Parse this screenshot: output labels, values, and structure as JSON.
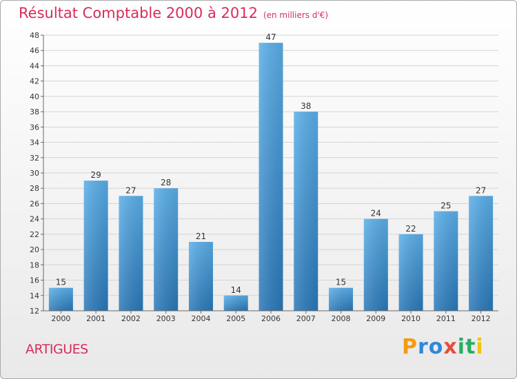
{
  "chart_data": {
    "type": "bar",
    "title": "Résultat Comptable 2000 à 2012",
    "unit_note": "(en milliers d'€)",
    "categories": [
      "2000",
      "2001",
      "2002",
      "2003",
      "2004",
      "2005",
      "2006",
      "2007",
      "2008",
      "2009",
      "2010",
      "2011",
      "2012"
    ],
    "values": [
      15,
      29,
      27,
      28,
      21,
      14,
      47,
      38,
      15,
      24,
      22,
      25,
      27
    ],
    "ylim": [
      12,
      48
    ],
    "yticks": [
      12,
      14,
      16,
      18,
      20,
      22,
      24,
      26,
      28,
      30,
      32,
      34,
      36,
      38,
      40,
      42,
      44,
      46,
      48
    ],
    "xlabel": "",
    "ylabel": "",
    "bar_color": "#3f93d6",
    "grid": true
  },
  "commune": "ARTIGUES",
  "logo": {
    "text": "Proxiti",
    "letters": [
      "P",
      "r",
      "o",
      "x",
      "i",
      "t",
      "i"
    ],
    "colors": [
      "#f39c12",
      "#2f88d8",
      "#2f88d8",
      "#e74c3c",
      "#27ae60",
      "#27ae60",
      "#f1c40f"
    ]
  }
}
